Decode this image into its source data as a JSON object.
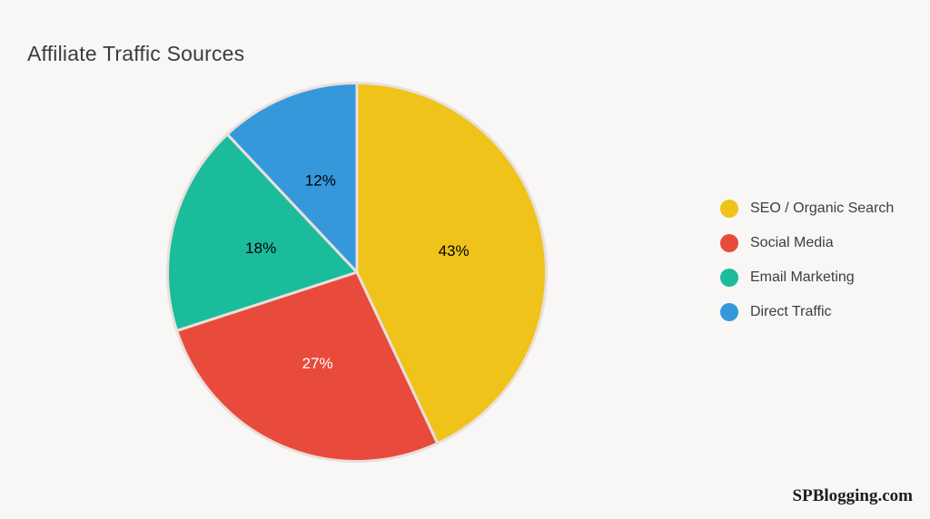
{
  "page": {
    "background_color": "#f8f7f5",
    "title": "Affiliate Traffic Sources",
    "title_color": "#3c3c3c",
    "watermark": "SPBlogging.com",
    "watermark_color": "#1c1c1c"
  },
  "chart_data": {
    "type": "pie",
    "title": "Affiliate Traffic Sources",
    "start_angle_deg": 0,
    "direction": "clockwise",
    "legend_position": "right",
    "slice_stroke_color": "#eadfdc",
    "slice_stroke_width": 3,
    "label_radius_fraction": 0.52,
    "slices": [
      {
        "label": "SEO / Organic Search",
        "value": 43,
        "display": "43%",
        "color": "#efc319",
        "label_color": "#000000"
      },
      {
        "label": "Social Media",
        "value": 27,
        "display": "27%",
        "color": "#e84b3b",
        "label_color": "#ffffff"
      },
      {
        "label": "Email Marketing",
        "value": 18,
        "display": "18%",
        "color": "#1abc9c",
        "label_color": "#000000"
      },
      {
        "label": "Direct Traffic",
        "value": 12,
        "display": "12%",
        "color": "#3598db",
        "label_color": "#000000"
      }
    ]
  }
}
